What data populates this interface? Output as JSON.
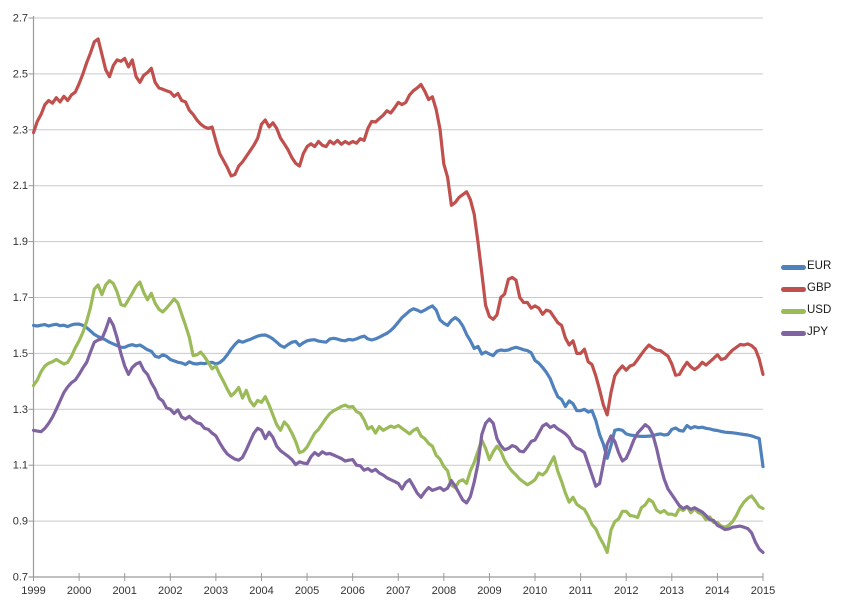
{
  "chart_data": {
    "type": "line",
    "title": "",
    "xlabel": "",
    "ylabel": "",
    "x_start_year": 1999,
    "points_per_year": 12,
    "xlim": [
      1999,
      2015
    ],
    "ylim": [
      0.7,
      2.7
    ],
    "grid": "horizontal",
    "legend_position": "right",
    "x_ticks": [
      "1999",
      "2000",
      "2001",
      "2002",
      "2003",
      "2004",
      "2005",
      "2006",
      "2007",
      "2008",
      "2009",
      "2010",
      "2011",
      "2012",
      "2013",
      "2014",
      "2015"
    ],
    "y_ticks": [
      "0.7",
      "0.9",
      "1.1",
      "1.3",
      "1.5",
      "1.7",
      "1.9",
      "2.1",
      "2.3",
      "2.5",
      "2.7"
    ],
    "colors": {
      "grid": "#c9c9c9",
      "axis": "#9a9a9a",
      "tick_text": "#333333",
      "legend_text": "#1a1a1a",
      "background": "#ffffff"
    },
    "series": [
      {
        "name": "EUR",
        "color": "#4F81BD",
        "values": [
          1.6,
          1.598,
          1.601,
          1.603,
          1.598,
          1.602,
          1.604,
          1.599,
          1.601,
          1.596,
          1.602,
          1.605,
          1.605,
          1.6,
          1.592,
          1.58,
          1.568,
          1.56,
          1.555,
          1.548,
          1.54,
          1.534,
          1.528,
          1.522,
          1.522,
          1.528,
          1.531,
          1.527,
          1.53,
          1.522,
          1.513,
          1.508,
          1.49,
          1.486,
          1.495,
          1.49,
          1.478,
          1.473,
          1.468,
          1.466,
          1.46,
          1.47,
          1.464,
          1.462,
          1.465,
          1.463,
          1.467,
          1.468,
          1.462,
          1.467,
          1.478,
          1.495,
          1.515,
          1.532,
          1.545,
          1.54,
          1.545,
          1.55,
          1.556,
          1.562,
          1.565,
          1.566,
          1.56,
          1.552,
          1.54,
          1.528,
          1.522,
          1.532,
          1.54,
          1.543,
          1.528,
          1.538,
          1.545,
          1.548,
          1.549,
          1.544,
          1.542,
          1.54,
          1.552,
          1.554,
          1.551,
          1.547,
          1.545,
          1.55,
          1.548,
          1.552,
          1.558,
          1.562,
          1.552,
          1.548,
          1.552,
          1.558,
          1.565,
          1.572,
          1.582,
          1.595,
          1.612,
          1.628,
          1.64,
          1.652,
          1.66,
          1.655,
          1.648,
          1.655,
          1.663,
          1.67,
          1.655,
          1.62,
          1.608,
          1.6,
          1.618,
          1.628,
          1.618,
          1.598,
          1.568,
          1.545,
          1.518,
          1.525,
          1.498,
          1.505,
          1.498,
          1.492,
          1.508,
          1.512,
          1.51,
          1.512,
          1.518,
          1.522,
          1.518,
          1.513,
          1.51,
          1.502,
          1.475,
          1.465,
          1.45,
          1.432,
          1.41,
          1.375,
          1.345,
          1.335,
          1.31,
          1.33,
          1.32,
          1.295,
          1.295,
          1.3,
          1.29,
          1.295,
          1.26,
          1.21,
          1.175,
          1.125,
          1.17,
          1.225,
          1.228,
          1.225,
          1.212,
          1.208,
          1.206,
          1.204,
          1.203,
          1.203,
          1.204,
          1.205,
          1.21,
          1.212,
          1.208,
          1.21,
          1.228,
          1.233,
          1.224,
          1.222,
          1.242,
          1.232,
          1.238,
          1.234,
          1.236,
          1.232,
          1.23,
          1.226,
          1.224,
          1.221,
          1.218,
          1.217,
          1.216,
          1.214,
          1.212,
          1.21,
          1.208,
          1.205,
          1.2,
          1.196,
          1.095
        ]
      },
      {
        "name": "GBP",
        "color": "#C0504D",
        "values": [
          2.29,
          2.33,
          2.355,
          2.39,
          2.405,
          2.395,
          2.415,
          2.4,
          2.42,
          2.405,
          2.425,
          2.435,
          2.465,
          2.5,
          2.54,
          2.575,
          2.615,
          2.625,
          2.57,
          2.515,
          2.49,
          2.53,
          2.55,
          2.545,
          2.555,
          2.525,
          2.55,
          2.49,
          2.47,
          2.495,
          2.505,
          2.52,
          2.47,
          2.45,
          2.445,
          2.44,
          2.435,
          2.42,
          2.43,
          2.405,
          2.4,
          2.37,
          2.355,
          2.335,
          2.32,
          2.31,
          2.305,
          2.31,
          2.26,
          2.215,
          2.19,
          2.165,
          2.135,
          2.14,
          2.17,
          2.185,
          2.205,
          2.225,
          2.245,
          2.27,
          2.32,
          2.335,
          2.31,
          2.325,
          2.305,
          2.27,
          2.25,
          2.228,
          2.2,
          2.18,
          2.17,
          2.215,
          2.24,
          2.25,
          2.24,
          2.258,
          2.245,
          2.24,
          2.26,
          2.25,
          2.262,
          2.248,
          2.258,
          2.25,
          2.258,
          2.252,
          2.268,
          2.262,
          2.305,
          2.33,
          2.328,
          2.34,
          2.352,
          2.368,
          2.36,
          2.378,
          2.398,
          2.39,
          2.398,
          2.425,
          2.44,
          2.45,
          2.462,
          2.438,
          2.408,
          2.418,
          2.372,
          2.302,
          2.178,
          2.13,
          2.03,
          2.04,
          2.058,
          2.068,
          2.078,
          2.05,
          1.998,
          1.898,
          1.788,
          1.672,
          1.632,
          1.622,
          1.638,
          1.7,
          1.712,
          1.765,
          1.772,
          1.762,
          1.7,
          1.682,
          1.682,
          1.662,
          1.67,
          1.662,
          1.64,
          1.655,
          1.65,
          1.63,
          1.61,
          1.6,
          1.555,
          1.53,
          1.545,
          1.5,
          1.5,
          1.515,
          1.47,
          1.46,
          1.42,
          1.37,
          1.315,
          1.28,
          1.36,
          1.42,
          1.44,
          1.455,
          1.44,
          1.455,
          1.46,
          1.478,
          1.497,
          1.515,
          1.53,
          1.52,
          1.512,
          1.51,
          1.5,
          1.49,
          1.462,
          1.422,
          1.425,
          1.448,
          1.468,
          1.452,
          1.442,
          1.452,
          1.468,
          1.458,
          1.47,
          1.482,
          1.495,
          1.478,
          1.482,
          1.498,
          1.512,
          1.522,
          1.532,
          1.53,
          1.534,
          1.528,
          1.515,
          1.48,
          1.425
        ]
      },
      {
        "name": "USD",
        "color": "#9BBB59",
        "values": [
          1.385,
          1.405,
          1.435,
          1.455,
          1.465,
          1.47,
          1.478,
          1.47,
          1.462,
          1.468,
          1.49,
          1.52,
          1.545,
          1.575,
          1.615,
          1.665,
          1.73,
          1.745,
          1.71,
          1.745,
          1.76,
          1.75,
          1.72,
          1.675,
          1.67,
          1.692,
          1.715,
          1.74,
          1.755,
          1.718,
          1.692,
          1.715,
          1.68,
          1.658,
          1.648,
          1.662,
          1.678,
          1.695,
          1.68,
          1.64,
          1.6,
          1.558,
          1.492,
          1.495,
          1.505,
          1.488,
          1.468,
          1.445,
          1.455,
          1.425,
          1.4,
          1.372,
          1.348,
          1.36,
          1.378,
          1.34,
          1.368,
          1.33,
          1.312,
          1.332,
          1.325,
          1.345,
          1.315,
          1.28,
          1.245,
          1.225,
          1.255,
          1.24,
          1.215,
          1.185,
          1.145,
          1.15,
          1.165,
          1.19,
          1.215,
          1.228,
          1.248,
          1.268,
          1.285,
          1.295,
          1.302,
          1.31,
          1.315,
          1.308,
          1.31,
          1.292,
          1.285,
          1.262,
          1.23,
          1.238,
          1.215,
          1.238,
          1.225,
          1.232,
          1.24,
          1.235,
          1.242,
          1.232,
          1.222,
          1.212,
          1.225,
          1.232,
          1.205,
          1.195,
          1.178,
          1.168,
          1.135,
          1.122,
          1.095,
          1.08,
          1.028,
          1.02,
          1.042,
          1.048,
          1.035,
          1.08,
          1.11,
          1.15,
          1.19,
          1.16,
          1.12,
          1.148,
          1.168,
          1.15,
          1.118,
          1.095,
          1.078,
          1.065,
          1.05,
          1.04,
          1.03,
          1.038,
          1.048,
          1.072,
          1.065,
          1.078,
          1.105,
          1.13,
          1.078,
          1.042,
          1.0,
          0.968,
          0.985,
          0.96,
          0.95,
          0.942,
          0.918,
          0.888,
          0.872,
          0.842,
          0.818,
          0.788,
          0.868,
          0.898,
          0.908,
          0.935,
          0.935,
          0.92,
          0.918,
          0.913,
          0.948,
          0.958,
          0.978,
          0.968,
          0.94,
          0.93,
          0.938,
          0.925,
          0.925,
          0.92,
          0.945,
          0.938,
          0.952,
          0.93,
          0.944,
          0.93,
          0.924,
          0.905,
          0.915,
          0.895,
          0.895,
          0.882,
          0.878,
          0.885,
          0.898,
          0.92,
          0.948,
          0.968,
          0.982,
          0.99,
          0.972,
          0.952,
          0.945
        ]
      },
      {
        "name": "JPY",
        "color": "#8064A2",
        "values": [
          1.225,
          1.222,
          1.22,
          1.232,
          1.25,
          1.272,
          1.3,
          1.33,
          1.36,
          1.38,
          1.395,
          1.405,
          1.425,
          1.448,
          1.468,
          1.505,
          1.54,
          1.548,
          1.552,
          1.585,
          1.625,
          1.6,
          1.555,
          1.5,
          1.455,
          1.425,
          1.45,
          1.462,
          1.468,
          1.44,
          1.425,
          1.395,
          1.372,
          1.34,
          1.33,
          1.305,
          1.3,
          1.285,
          1.298,
          1.272,
          1.265,
          1.275,
          1.262,
          1.252,
          1.248,
          1.232,
          1.228,
          1.215,
          1.205,
          1.18,
          1.158,
          1.14,
          1.13,
          1.122,
          1.118,
          1.128,
          1.155,
          1.185,
          1.215,
          1.232,
          1.225,
          1.195,
          1.218,
          1.2,
          1.168,
          1.152,
          1.142,
          1.132,
          1.12,
          1.102,
          1.112,
          1.108,
          1.105,
          1.13,
          1.145,
          1.135,
          1.148,
          1.14,
          1.142,
          1.136,
          1.13,
          1.124,
          1.115,
          1.118,
          1.12,
          1.1,
          1.098,
          1.082,
          1.088,
          1.078,
          1.085,
          1.072,
          1.065,
          1.055,
          1.048,
          1.042,
          1.035,
          1.015,
          1.038,
          1.048,
          1.025,
          1.0,
          0.985,
          1.005,
          1.02,
          1.01,
          1.015,
          1.02,
          1.01,
          1.018,
          1.045,
          1.025,
          1.0,
          0.975,
          0.965,
          0.988,
          1.04,
          1.105,
          1.21,
          1.25,
          1.265,
          1.25,
          1.195,
          1.17,
          1.155,
          1.16,
          1.17,
          1.165,
          1.15,
          1.148,
          1.165,
          1.185,
          1.19,
          1.215,
          1.24,
          1.248,
          1.235,
          1.242,
          1.23,
          1.222,
          1.212,
          1.198,
          1.172,
          1.16,
          1.155,
          1.145,
          1.105,
          1.065,
          1.025,
          1.035,
          1.105,
          1.175,
          1.205,
          1.185,
          1.145,
          1.115,
          1.125,
          1.155,
          1.19,
          1.215,
          1.23,
          1.245,
          1.235,
          1.21,
          1.16,
          1.1,
          1.05,
          1.015,
          0.995,
          0.975,
          0.955,
          0.945,
          0.952,
          0.942,
          0.948,
          0.94,
          0.933,
          0.92,
          0.905,
          0.902,
          0.885,
          0.878,
          0.87,
          0.872,
          0.878,
          0.88,
          0.882,
          0.878,
          0.873,
          0.858,
          0.825,
          0.8,
          0.788
        ]
      }
    ]
  }
}
